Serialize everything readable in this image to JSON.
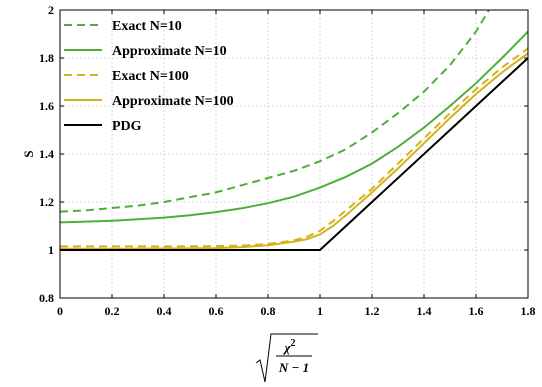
{
  "chart_data": {
    "type": "line",
    "xlim": [
      0,
      1.8
    ],
    "ylim": [
      0.8,
      2.0
    ],
    "xticks": [
      0,
      0.2,
      0.4,
      0.6,
      0.8,
      1,
      1.2,
      1.4,
      1.6,
      1.8
    ],
    "xtick_labels": [
      "0",
      "0.2",
      "0.4",
      "0.6",
      "0.8",
      "1",
      "1.2",
      "1.4",
      "1.6",
      "1.8"
    ],
    "yticks": [
      0.8,
      1,
      1.2,
      1.4,
      1.6,
      1.8,
      2
    ],
    "ytick_labels": [
      "0.8",
      "1",
      "1.2",
      "1.4",
      "1.6",
      "1.8",
      "2"
    ],
    "ylabel": "S",
    "xlabel": {
      "numerator": "χ",
      "exponent": "2",
      "denominator": "N − 1"
    },
    "grid": true,
    "legend_position": "top-left",
    "series": [
      {
        "name": "Exact N=10",
        "color": "#4daf3a",
        "dash": "dashed",
        "x": [
          0,
          0.1,
          0.2,
          0.3,
          0.4,
          0.5,
          0.6,
          0.7,
          0.8,
          0.9,
          1.0,
          1.1,
          1.2,
          1.3,
          1.4,
          1.5,
          1.6,
          1.65
        ],
        "y": [
          1.16,
          1.165,
          1.175,
          1.185,
          1.2,
          1.22,
          1.24,
          1.27,
          1.3,
          1.33,
          1.37,
          1.42,
          1.49,
          1.57,
          1.66,
          1.77,
          1.91,
          2.0
        ]
      },
      {
        "name": "Approximate N=10",
        "color": "#4daf3a",
        "dash": "solid",
        "x": [
          0,
          0.1,
          0.2,
          0.3,
          0.4,
          0.5,
          0.6,
          0.7,
          0.8,
          0.9,
          1.0,
          1.1,
          1.2,
          1.3,
          1.4,
          1.5,
          1.6,
          1.7,
          1.8
        ],
        "y": [
          1.115,
          1.118,
          1.122,
          1.128,
          1.135,
          1.145,
          1.158,
          1.174,
          1.195,
          1.222,
          1.26,
          1.305,
          1.36,
          1.43,
          1.51,
          1.6,
          1.695,
          1.8,
          1.91
        ]
      },
      {
        "name": "Exact N=100",
        "color": "#d4b21a",
        "dash": "dashed",
        "x": [
          0,
          0.2,
          0.4,
          0.6,
          0.7,
          0.8,
          0.9,
          0.95,
          1.0,
          1.05,
          1.1,
          1.2,
          1.3,
          1.4,
          1.5,
          1.6,
          1.7,
          1.8
        ],
        "y": [
          1.015,
          1.015,
          1.015,
          1.016,
          1.018,
          1.025,
          1.04,
          1.055,
          1.08,
          1.12,
          1.165,
          1.255,
          1.36,
          1.465,
          1.57,
          1.67,
          1.76,
          1.84
        ]
      },
      {
        "name": "Approximate N=100",
        "color": "#d4b21a",
        "dash": "solid",
        "x": [
          0,
          0.2,
          0.4,
          0.6,
          0.7,
          0.8,
          0.9,
          0.95,
          1.0,
          1.05,
          1.1,
          1.2,
          1.3,
          1.4,
          1.5,
          1.6,
          1.7,
          1.8
        ],
        "y": [
          1.005,
          1.005,
          1.006,
          1.008,
          1.012,
          1.02,
          1.035,
          1.045,
          1.065,
          1.1,
          1.145,
          1.24,
          1.34,
          1.445,
          1.55,
          1.65,
          1.74,
          1.82
        ]
      },
      {
        "name": "PDG",
        "color": "#000000",
        "dash": "solid",
        "x": [
          0,
          1.0,
          1.8
        ],
        "y": [
          1.0,
          1.0,
          1.8
        ]
      }
    ]
  }
}
